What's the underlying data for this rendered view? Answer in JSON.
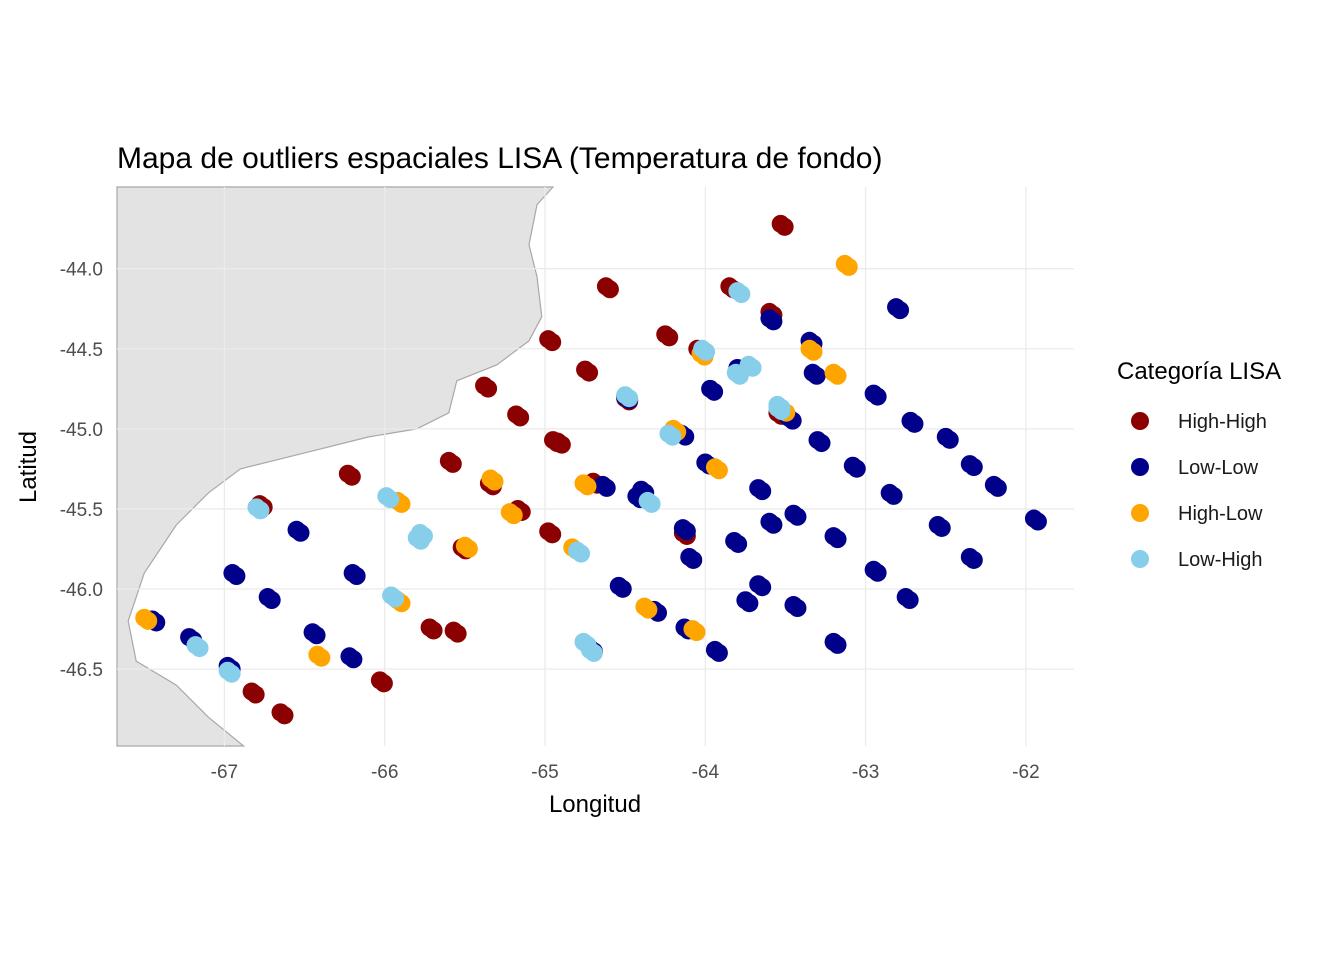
{
  "chart_data": {
    "type": "scatter",
    "title": "Mapa de outliers espaciales LISA (Temperatura de fondo)",
    "xlabel": "Longitud",
    "ylabel": "Latitud",
    "xlim": [
      -67.67,
      -61.7
    ],
    "ylim": [
      -46.98,
      -43.49
    ],
    "xticks": [
      -67,
      -66,
      -65,
      -64,
      -63,
      -62
    ],
    "xtick_labels": [
      "-67",
      "-66",
      "-65",
      "-64",
      "-63",
      "-62"
    ],
    "yticks": [
      -44.0,
      -44.5,
      -45.0,
      -45.5,
      -46.0,
      -46.5
    ],
    "ytick_labels": [
      "-44.0",
      "-44.5",
      "-45.0",
      "-45.5",
      "-46.0",
      "-46.5"
    ],
    "grid": true,
    "legend": {
      "title": "Categoría LISA",
      "position": "right"
    },
    "land_outline": [
      [
        -67.67,
        -46.98
      ],
      [
        -67.67,
        -43.49
      ],
      [
        -64.95,
        -43.49
      ],
      [
        -65.05,
        -43.6
      ],
      [
        -65.1,
        -43.85
      ],
      [
        -65.05,
        -44.05
      ],
      [
        -65.02,
        -44.3
      ],
      [
        -65.1,
        -44.45
      ],
      [
        -65.3,
        -44.6
      ],
      [
        -65.55,
        -44.7
      ],
      [
        -65.6,
        -44.9
      ],
      [
        -65.8,
        -45.0
      ],
      [
        -66.1,
        -45.05
      ],
      [
        -66.5,
        -45.15
      ],
      [
        -66.9,
        -45.25
      ],
      [
        -67.1,
        -45.4
      ],
      [
        -67.3,
        -45.6
      ],
      [
        -67.5,
        -45.9
      ],
      [
        -67.6,
        -46.2
      ],
      [
        -67.55,
        -46.45
      ],
      [
        -67.3,
        -46.6
      ],
      [
        -67.1,
        -46.8
      ],
      [
        -66.88,
        -46.98
      ]
    ],
    "series": [
      {
        "name": "High-High",
        "color": "#8B0000",
        "points": [
          [
            -63.53,
            -43.72
          ],
          [
            -64.62,
            -44.11
          ],
          [
            -63.85,
            -44.11
          ],
          [
            -63.6,
            -44.27
          ],
          [
            -64.98,
            -44.44
          ],
          [
            -64.25,
            -44.41
          ],
          [
            -64.05,
            -44.5
          ],
          [
            -64.75,
            -44.63
          ],
          [
            -65.38,
            -44.73
          ],
          [
            -64.5,
            -44.81
          ],
          [
            -65.18,
            -44.91
          ],
          [
            -64.95,
            -45.07
          ],
          [
            -63.55,
            -44.9
          ],
          [
            -65.6,
            -45.2
          ],
          [
            -66.23,
            -45.28
          ],
          [
            -64.7,
            -45.33
          ],
          [
            -66.78,
            -45.47
          ],
          [
            -65.35,
            -45.34
          ],
          [
            -65.17,
            -45.5
          ],
          [
            -64.98,
            -45.64
          ],
          [
            -65.52,
            -45.74
          ],
          [
            -64.92,
            -45.08
          ],
          [
            -64.14,
            -45.65
          ],
          [
            -65.72,
            -46.24
          ],
          [
            -65.57,
            -46.26
          ],
          [
            -66.83,
            -46.64
          ],
          [
            -66.65,
            -46.77
          ],
          [
            -66.03,
            -46.57
          ]
        ]
      },
      {
        "name": "Low-Low",
        "color": "#00008B",
        "points": [
          [
            -62.81,
            -44.24
          ],
          [
            -63.6,
            -44.31
          ],
          [
            -63.35,
            -44.45
          ],
          [
            -63.33,
            -44.65
          ],
          [
            -63.8,
            -44.62
          ],
          [
            -62.95,
            -44.78
          ],
          [
            -63.97,
            -44.75
          ],
          [
            -63.48,
            -44.93
          ],
          [
            -64.5,
            -44.8
          ],
          [
            -63.3,
            -45.07
          ],
          [
            -62.72,
            -44.95
          ],
          [
            -62.5,
            -45.05
          ],
          [
            -64.15,
            -45.03
          ],
          [
            -63.08,
            -45.23
          ],
          [
            -64.0,
            -45.21
          ],
          [
            -64.64,
            -45.35
          ],
          [
            -62.35,
            -45.22
          ],
          [
            -62.2,
            -45.35
          ],
          [
            -63.67,
            -45.37
          ],
          [
            -62.85,
            -45.4
          ],
          [
            -64.4,
            -45.38
          ],
          [
            -64.43,
            -45.42
          ],
          [
            -63.45,
            -45.53
          ],
          [
            -63.6,
            -45.58
          ],
          [
            -61.95,
            -45.56
          ],
          [
            -62.55,
            -45.6
          ],
          [
            -64.14,
            -45.62
          ],
          [
            -63.2,
            -45.67
          ],
          [
            -63.82,
            -45.7
          ],
          [
            -62.35,
            -45.8
          ],
          [
            -66.55,
            -45.63
          ],
          [
            -64.1,
            -45.8
          ],
          [
            -62.95,
            -45.88
          ],
          [
            -63.67,
            -45.97
          ],
          [
            -62.75,
            -46.05
          ],
          [
            -63.75,
            -46.07
          ],
          [
            -63.45,
            -46.1
          ],
          [
            -64.54,
            -45.98
          ],
          [
            -66.73,
            -46.05
          ],
          [
            -66.95,
            -45.9
          ],
          [
            -66.2,
            -45.9
          ],
          [
            -64.32,
            -46.13
          ],
          [
            -64.13,
            -46.24
          ],
          [
            -63.2,
            -46.33
          ],
          [
            -66.45,
            -46.27
          ],
          [
            -66.22,
            -46.42
          ],
          [
            -63.94,
            -46.38
          ],
          [
            -67.22,
            -46.3
          ],
          [
            -67.45,
            -46.19
          ],
          [
            -64.72,
            -46.37
          ],
          [
            -66.98,
            -46.48
          ]
        ]
      },
      {
        "name": "High-Low",
        "color": "#FFA500",
        "points": [
          [
            -63.13,
            -43.97
          ],
          [
            -64.03,
            -44.53
          ],
          [
            -63.35,
            -44.5
          ],
          [
            -63.2,
            -44.65
          ],
          [
            -64.2,
            -45.0
          ],
          [
            -63.94,
            -45.24
          ],
          [
            -65.34,
            -45.31
          ],
          [
            -65.22,
            -45.52
          ],
          [
            -64.83,
            -45.74
          ],
          [
            -65.5,
            -45.73
          ],
          [
            -64.76,
            -45.34
          ],
          [
            -65.92,
            -45.45
          ],
          [
            -65.92,
            -46.07
          ],
          [
            -64.38,
            -46.11
          ],
          [
            -64.08,
            -46.25
          ],
          [
            -66.42,
            -46.41
          ],
          [
            -67.5,
            -46.18
          ],
          [
            -63.52,
            -44.88
          ]
        ]
      },
      {
        "name": "Low-High",
        "color": "#87CEEB",
        "points": [
          [
            -63.8,
            -44.14
          ],
          [
            -64.02,
            -44.5
          ],
          [
            -63.73,
            -44.6
          ],
          [
            -63.55,
            -44.87
          ],
          [
            -64.5,
            -44.79
          ],
          [
            -64.23,
            -45.03
          ],
          [
            -64.36,
            -45.45
          ],
          [
            -64.8,
            -45.76
          ],
          [
            -65.78,
            -45.65
          ],
          [
            -65.8,
            -45.68
          ],
          [
            -65.99,
            -45.42
          ],
          [
            -66.8,
            -45.49
          ],
          [
            -65.96,
            -46.04
          ],
          [
            -64.76,
            -46.33
          ],
          [
            -64.72,
            -46.38
          ],
          [
            -67.18,
            -46.35
          ],
          [
            -66.98,
            -46.51
          ],
          [
            -63.81,
            -44.65
          ],
          [
            -63.55,
            -44.85
          ]
        ]
      }
    ]
  }
}
